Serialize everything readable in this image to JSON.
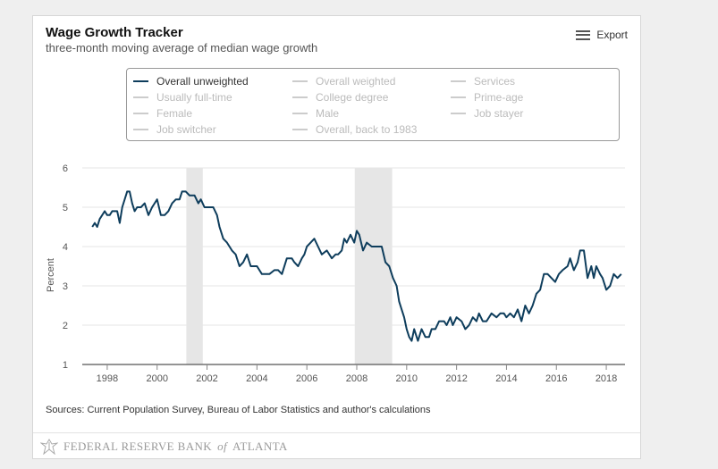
{
  "header": {
    "title": "Wage Growth Tracker",
    "subtitle": "three-month moving average of median wage growth",
    "export_label": "Export"
  },
  "legend": [
    {
      "label": "Overall unweighted",
      "active": true
    },
    {
      "label": "Overall weighted",
      "active": false
    },
    {
      "label": "Services",
      "active": false
    },
    {
      "label": "Usually full-time",
      "active": false
    },
    {
      "label": "College degree",
      "active": false
    },
    {
      "label": "Prime-age",
      "active": false
    },
    {
      "label": "Female",
      "active": false
    },
    {
      "label": "Male",
      "active": false
    },
    {
      "label": "Job stayer",
      "active": false
    },
    {
      "label": "Job switcher",
      "active": false
    },
    {
      "label": "Overall, back to 1983",
      "active": false
    }
  ],
  "sources": "Sources: Current Population Survey, Bureau of Labor Statistics and author's calculations",
  "footer": {
    "logo_main": "FEDERAL RESERVE BANK",
    "logo_of": "of",
    "logo_city": "ATLANTA"
  },
  "colors": {
    "series": "#0e3d5c",
    "recession": "#e6e6e6",
    "legend_inactive": "#bbbbbb"
  },
  "chart_data": {
    "type": "line",
    "title": "Wage Growth Tracker",
    "subtitle": "three-month moving average of median wage growth",
    "xlabel": "",
    "ylabel": "Percent",
    "xlim": [
      1997.0,
      2018.75
    ],
    "ylim": [
      1,
      6
    ],
    "yticks": [
      1,
      2,
      3,
      4,
      5,
      6
    ],
    "xticks": [
      1998,
      2000,
      2002,
      2004,
      2006,
      2008,
      2010,
      2012,
      2014,
      2016,
      2018
    ],
    "grid": true,
    "recessions": [
      [
        2001.17,
        2001.83
      ],
      [
        2007.92,
        2009.42
      ]
    ],
    "series": [
      {
        "name": "Overall unweighted",
        "color": "#0e3d5c",
        "x": [
          1997.4,
          1997.5,
          1997.6,
          1997.7,
          1997.8,
          1997.9,
          1998.0,
          1998.1,
          1998.2,
          1998.4,
          1998.5,
          1998.6,
          1998.8,
          1998.9,
          1999.0,
          1999.1,
          1999.2,
          1999.35,
          1999.5,
          1999.65,
          1999.8,
          1999.9,
          2000.0,
          2000.15,
          2000.3,
          2000.45,
          2000.6,
          2000.75,
          2000.9,
          2001.0,
          2001.15,
          2001.3,
          2001.5,
          2001.65,
          2001.75,
          2001.9,
          2002.1,
          2002.25,
          2002.4,
          2002.5,
          2002.65,
          2002.8,
          2003.0,
          2003.15,
          2003.3,
          2003.45,
          2003.6,
          2003.75,
          2003.9,
          2004.0,
          2004.2,
          2004.4,
          2004.5,
          2004.7,
          2004.85,
          2005.0,
          2005.2,
          2005.4,
          2005.5,
          2005.65,
          2005.8,
          2005.9,
          2006.0,
          2006.15,
          2006.3,
          2006.45,
          2006.6,
          2006.8,
          2007.0,
          2007.15,
          2007.25,
          2007.4,
          2007.5,
          2007.6,
          2007.75,
          2007.9,
          2008.0,
          2008.1,
          2008.25,
          2008.4,
          2008.6,
          2008.8,
          2009.0,
          2009.15,
          2009.3,
          2009.45,
          2009.6,
          2009.7,
          2009.8,
          2009.9,
          2010.0,
          2010.1,
          2010.2,
          2010.3,
          2010.45,
          2010.6,
          2010.75,
          2010.9,
          2011.0,
          2011.15,
          2011.3,
          2011.5,
          2011.6,
          2011.75,
          2011.85,
          2012.0,
          2012.2,
          2012.35,
          2012.5,
          2012.65,
          2012.8,
          2012.9,
          2013.05,
          2013.2,
          2013.4,
          2013.6,
          2013.75,
          2013.9,
          2014.0,
          2014.15,
          2014.3,
          2014.45,
          2014.6,
          2014.75,
          2014.9,
          2015.05,
          2015.2,
          2015.35,
          2015.5,
          2015.65,
          2015.8,
          2015.95,
          2016.1,
          2016.25,
          2016.45,
          2016.55,
          2016.7,
          2016.85,
          2016.95,
          2017.1,
          2017.25,
          2017.4,
          2017.5,
          2017.6,
          2017.75,
          2017.85,
          2018.0,
          2018.15,
          2018.3,
          2018.45,
          2018.6
        ],
        "y": [
          4.5,
          4.6,
          4.5,
          4.7,
          4.8,
          4.9,
          4.8,
          4.8,
          4.9,
          4.9,
          4.6,
          5.0,
          5.4,
          5.4,
          5.1,
          4.9,
          5.0,
          5.0,
          5.1,
          4.8,
          5.0,
          5.1,
          5.2,
          4.8,
          4.8,
          4.9,
          5.1,
          5.2,
          5.2,
          5.4,
          5.4,
          5.3,
          5.3,
          5.1,
          5.2,
          5.0,
          5.0,
          5.0,
          4.8,
          4.5,
          4.2,
          4.1,
          3.9,
          3.8,
          3.5,
          3.6,
          3.8,
          3.5,
          3.5,
          3.5,
          3.3,
          3.3,
          3.3,
          3.4,
          3.4,
          3.3,
          3.7,
          3.7,
          3.6,
          3.5,
          3.7,
          3.8,
          4.0,
          4.1,
          4.2,
          4.0,
          3.8,
          3.9,
          3.7,
          3.8,
          3.8,
          3.9,
          4.2,
          4.1,
          4.3,
          4.1,
          4.4,
          4.3,
          3.9,
          4.1,
          4.0,
          4.0,
          4.0,
          3.6,
          3.5,
          3.2,
          3.0,
          2.6,
          2.4,
          2.2,
          1.9,
          1.7,
          1.6,
          1.9,
          1.6,
          1.9,
          1.7,
          1.7,
          1.9,
          1.9,
          2.1,
          2.1,
          2.0,
          2.2,
          2.0,
          2.2,
          2.1,
          1.9,
          2.0,
          2.2,
          2.1,
          2.3,
          2.1,
          2.1,
          2.3,
          2.2,
          2.3,
          2.3,
          2.2,
          2.3,
          2.2,
          2.4,
          2.1,
          2.5,
          2.3,
          2.5,
          2.8,
          2.9,
          3.3,
          3.3,
          3.2,
          3.1,
          3.3,
          3.4,
          3.5,
          3.7,
          3.4,
          3.6,
          3.9,
          3.9,
          3.2,
          3.5,
          3.2,
          3.5,
          3.3,
          3.2,
          2.9,
          3.0,
          3.3,
          3.2,
          3.3
        ]
      }
    ]
  }
}
